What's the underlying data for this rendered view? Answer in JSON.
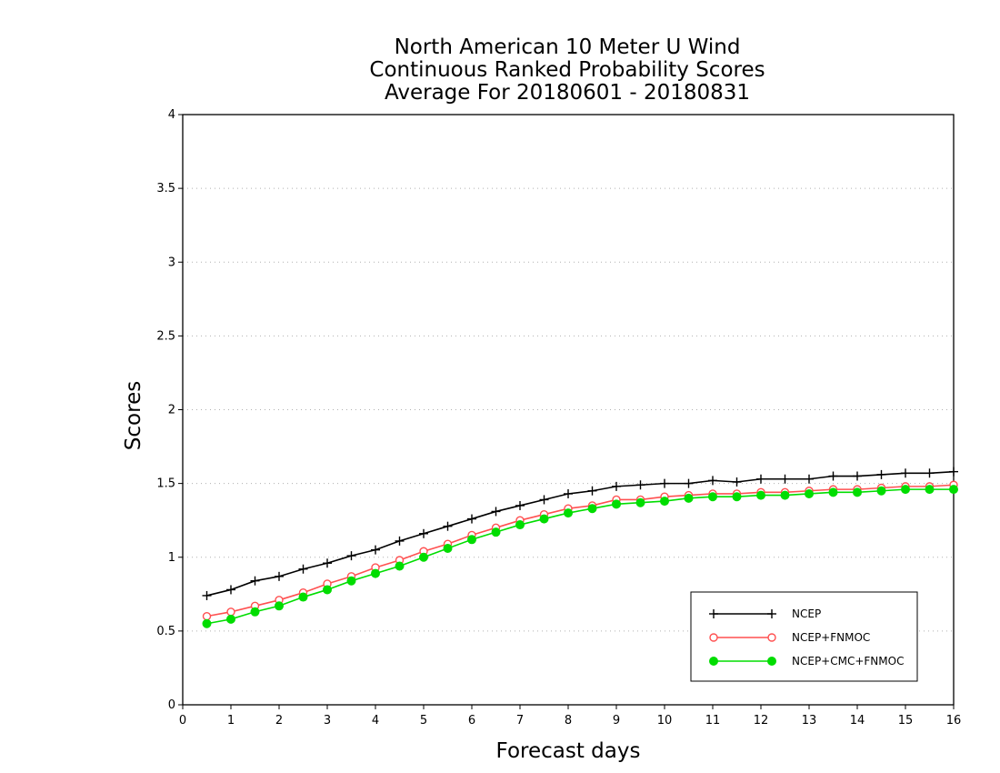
{
  "chart_data": {
    "type": "line",
    "title": [
      "North American 10 Meter U Wind",
      "Continuous Ranked Probability Scores",
      "Average For 20180601 - 20180831"
    ],
    "xlabel": "Forecast days",
    "ylabel": "Scores",
    "xlim": [
      0,
      16
    ],
    "ylim": [
      0,
      4
    ],
    "x_ticks": [
      0,
      1,
      2,
      3,
      4,
      5,
      6,
      7,
      8,
      9,
      10,
      11,
      12,
      13,
      14,
      15,
      16
    ],
    "y_ticks": [
      0,
      0.5,
      1,
      1.5,
      2,
      2.5,
      3,
      3.5,
      4
    ],
    "y_tick_labels": [
      "0",
      "0.5",
      "1",
      "1.5",
      "2",
      "2.5",
      "3",
      "3.5",
      "4"
    ],
    "grid": "horizontal dotted",
    "legend_position": "bottom-right",
    "x": [
      0.5,
      1.0,
      1.5,
      2.0,
      2.5,
      3.0,
      3.5,
      4.0,
      4.5,
      5.0,
      5.5,
      6.0,
      6.5,
      7.0,
      7.5,
      8.0,
      8.5,
      9.0,
      9.5,
      10.0,
      10.5,
      11.0,
      11.5,
      12.0,
      12.5,
      13.0,
      13.5,
      14.0,
      14.5,
      15.0,
      15.5,
      16.0
    ],
    "series": [
      {
        "name": "NCEP",
        "color": "#000000",
        "marker": "plus",
        "values": [
          0.74,
          0.78,
          0.84,
          0.87,
          0.92,
          0.96,
          1.01,
          1.05,
          1.11,
          1.16,
          1.21,
          1.26,
          1.31,
          1.35,
          1.39,
          1.43,
          1.45,
          1.48,
          1.49,
          1.5,
          1.5,
          1.52,
          1.51,
          1.53,
          1.53,
          1.53,
          1.55,
          1.55,
          1.56,
          1.57,
          1.57,
          1.58
        ]
      },
      {
        "name": "NCEP+FNMOC",
        "color": "#ff5050",
        "marker": "open-circle",
        "values": [
          0.6,
          0.63,
          0.67,
          0.71,
          0.76,
          0.82,
          0.87,
          0.93,
          0.98,
          1.04,
          1.09,
          1.15,
          1.2,
          1.25,
          1.29,
          1.33,
          1.35,
          1.39,
          1.39,
          1.41,
          1.42,
          1.43,
          1.43,
          1.44,
          1.44,
          1.45,
          1.46,
          1.46,
          1.47,
          1.48,
          1.48,
          1.49
        ]
      },
      {
        "name": "NCEP+CMC+FNMOC",
        "color": "#00dd00",
        "marker": "filled-circle",
        "values": [
          0.55,
          0.58,
          0.63,
          0.67,
          0.73,
          0.78,
          0.84,
          0.89,
          0.94,
          1.0,
          1.06,
          1.12,
          1.17,
          1.22,
          1.26,
          1.3,
          1.33,
          1.36,
          1.37,
          1.38,
          1.4,
          1.41,
          1.41,
          1.42,
          1.42,
          1.43,
          1.44,
          1.44,
          1.45,
          1.46,
          1.46,
          1.46
        ]
      }
    ]
  }
}
